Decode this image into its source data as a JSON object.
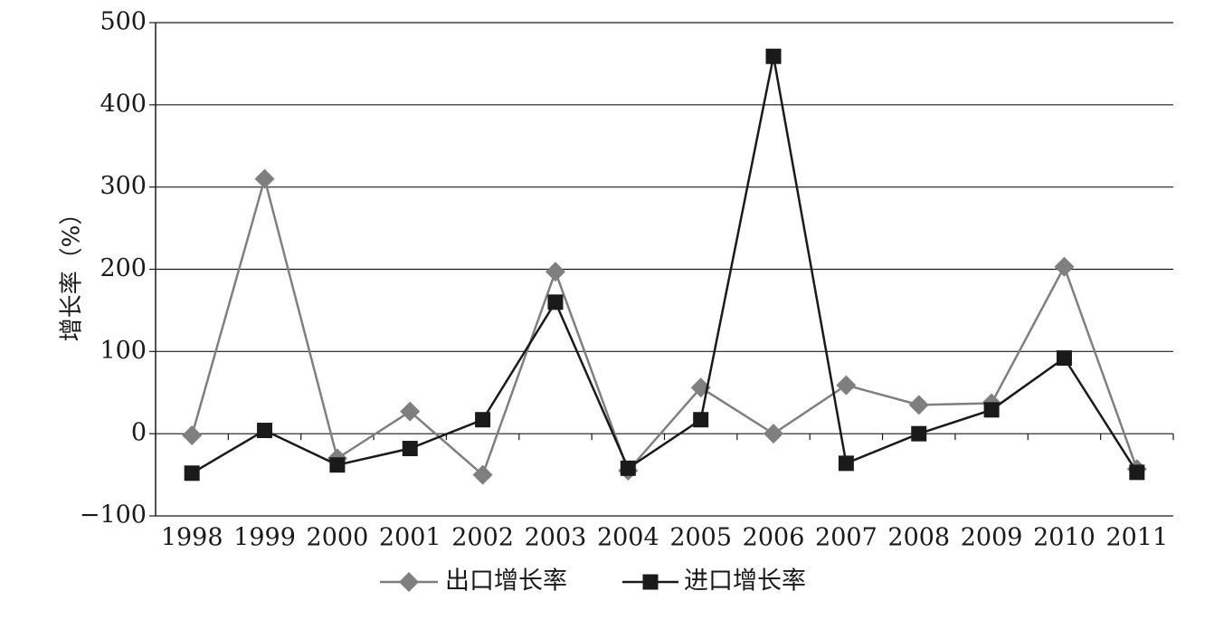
{
  "chart_data": {
    "type": "line",
    "categories": [
      "1998",
      "1999",
      "2000",
      "2001",
      "2002",
      "2003",
      "2004",
      "2005",
      "2006",
      "2007",
      "2008",
      "2009",
      "2010",
      "2011"
    ],
    "series": [
      {
        "name": "出口增长率",
        "color": "#7f7f7f",
        "marker": "diamond",
        "values": [
          -2,
          310,
          -30,
          27,
          -50,
          197,
          -45,
          56,
          0,
          59,
          35,
          37,
          203,
          -43
        ]
      },
      {
        "name": "进口增长率",
        "color": "#1a1a1a",
        "marker": "square",
        "values": [
          -48,
          4,
          -38,
          -18,
          17,
          160,
          -42,
          17,
          459,
          -36,
          0,
          29,
          92,
          -47
        ]
      }
    ],
    "ylabel": "增长率（%）",
    "xlabel": "",
    "ylim": [
      -100,
      500
    ],
    "yticks": [
      "−100",
      "0",
      "100",
      "200",
      "300",
      "400",
      "500"
    ],
    "grid": true,
    "legend_position": "bottom"
  }
}
